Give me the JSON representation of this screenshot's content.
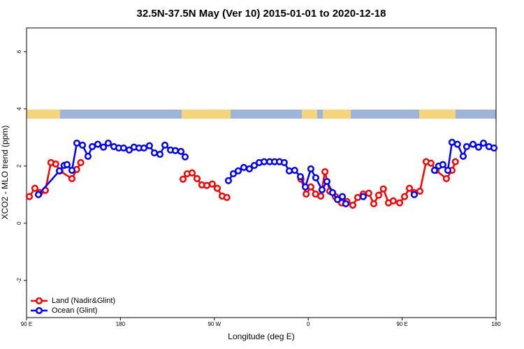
{
  "chart_data": {
    "type": "line",
    "title": "32.5N-37.5N May (Ver 10)   2015-01-01 to 2020-12-18",
    "x_label": "Longitude (deg E)",
    "y_label": "XCO2 - MLO trend (ppm)",
    "xlim": [
      90,
      540
    ],
    "xticks": [
      {
        "value": 90,
        "label": "90 E"
      },
      {
        "value": 180,
        "label": "180"
      },
      {
        "value": 270,
        "label": "90 W"
      },
      {
        "value": 360,
        "label": "0"
      },
      {
        "value": 450,
        "label": "90 E"
      },
      {
        "value": 540,
        "label": "180"
      }
    ],
    "ylim": [
      -3.3,
      6.83
    ],
    "yticks": [
      -2,
      0,
      2,
      4,
      6
    ],
    "legend": "bottomleft",
    "series": [
      {
        "name": "Land (Nadir&Glint)",
        "color": "#ff0000",
        "x": [
          92.7,
          98,
          102.7,
          108,
          113.4,
          118,
          122,
          133.5,
          138,
          142,
          null,
          240,
          244,
          248.7,
          253.4,
          258,
          262.8,
          268,
          272.8,
          277.5,
          282,
          null,
          353,
          358,
          362.5,
          367,
          372,
          376,
          380.6,
          386,
          392,
          397,
          402.7,
          407.4,
          412.7,
          418,
          422.8,
          427.5,
          432,
          436.9,
          441.5,
          447.6,
          452.3,
          457,
          461.6,
          467,
          473,
          477.6,
          482.4,
          492.4,
          497.8,
          501
        ],
        "values": [
          0.93,
          1.22,
          1.07,
          1.15,
          2.12,
          2.07,
          1.83,
          1.56,
          1.88,
          2.12,
          null,
          1.54,
          1.73,
          1.76,
          1.56,
          1.34,
          1.32,
          1.37,
          1.22,
          0.95,
          0.9,
          null,
          1.54,
          1.02,
          1.27,
          1.02,
          0.95,
          1.8,
          1.12,
          0.93,
          0.71,
          0.76,
          0.63,
          0.9,
          1.02,
          1.05,
          0.68,
          0.98,
          1.2,
          0.71,
          0.78,
          0.71,
          0.93,
          1.22,
          1.07,
          1.12,
          2.15,
          2.1,
          1.85,
          1.56,
          1.85,
          2.15
        ]
      },
      {
        "name": "Ocean (Glint)",
        "color": "#0000ff",
        "x": [
          101.4,
          121.5,
          126,
          128.8,
          133.5,
          138.2,
          143.6,
          148.9,
          153,
          158.3,
          163.7,
          168.3,
          173.7,
          178.4,
          183,
          188.4,
          193,
          197.8,
          202.5,
          207.8,
          212.5,
          217.9,
          222.6,
          228,
          232.6,
          238,
          242,
          null,
          283.5,
          288.2,
          292.9,
          298.2,
          303.6,
          308.3,
          313,
          317.7,
          323,
          327.7,
          332.4,
          337,
          341.8,
          347,
          352.5,
          357.2,
          362.5,
          367.2,
          373.2,
          377.9,
          383.3,
          388,
          392.7,
          396,
          null,
          412.7,
          null,
          461.6,
          null,
          481,
          485,
          489,
          493.8,
          497.8,
          503,
          508.5,
          511.8,
          517.9,
          523.2,
          527.9,
          533.2,
          538
        ],
        "values": [
          1.0,
          1.83,
          2.02,
          2.05,
          1.85,
          2.8,
          2.73,
          2.34,
          2.68,
          2.76,
          2.66,
          2.8,
          2.68,
          2.63,
          2.63,
          2.56,
          2.66,
          2.63,
          2.63,
          2.71,
          2.46,
          2.41,
          2.73,
          2.56,
          2.54,
          2.51,
          2.32,
          null,
          1.49,
          1.73,
          1.83,
          1.95,
          1.9,
          2.02,
          2.12,
          2.15,
          2.15,
          2.15,
          2.15,
          2.12,
          1.83,
          1.85,
          1.63,
          1.27,
          1.9,
          1.59,
          1.17,
          1.46,
          1.07,
          0.83,
          0.93,
          0.68,
          null,
          0.93,
          null,
          1.0,
          null,
          1.85,
          2.0,
          2.05,
          1.85,
          2.83,
          2.76,
          2.34,
          2.68,
          2.76,
          2.66,
          2.8,
          2.68,
          2.63
        ]
      }
    ]
  }
}
